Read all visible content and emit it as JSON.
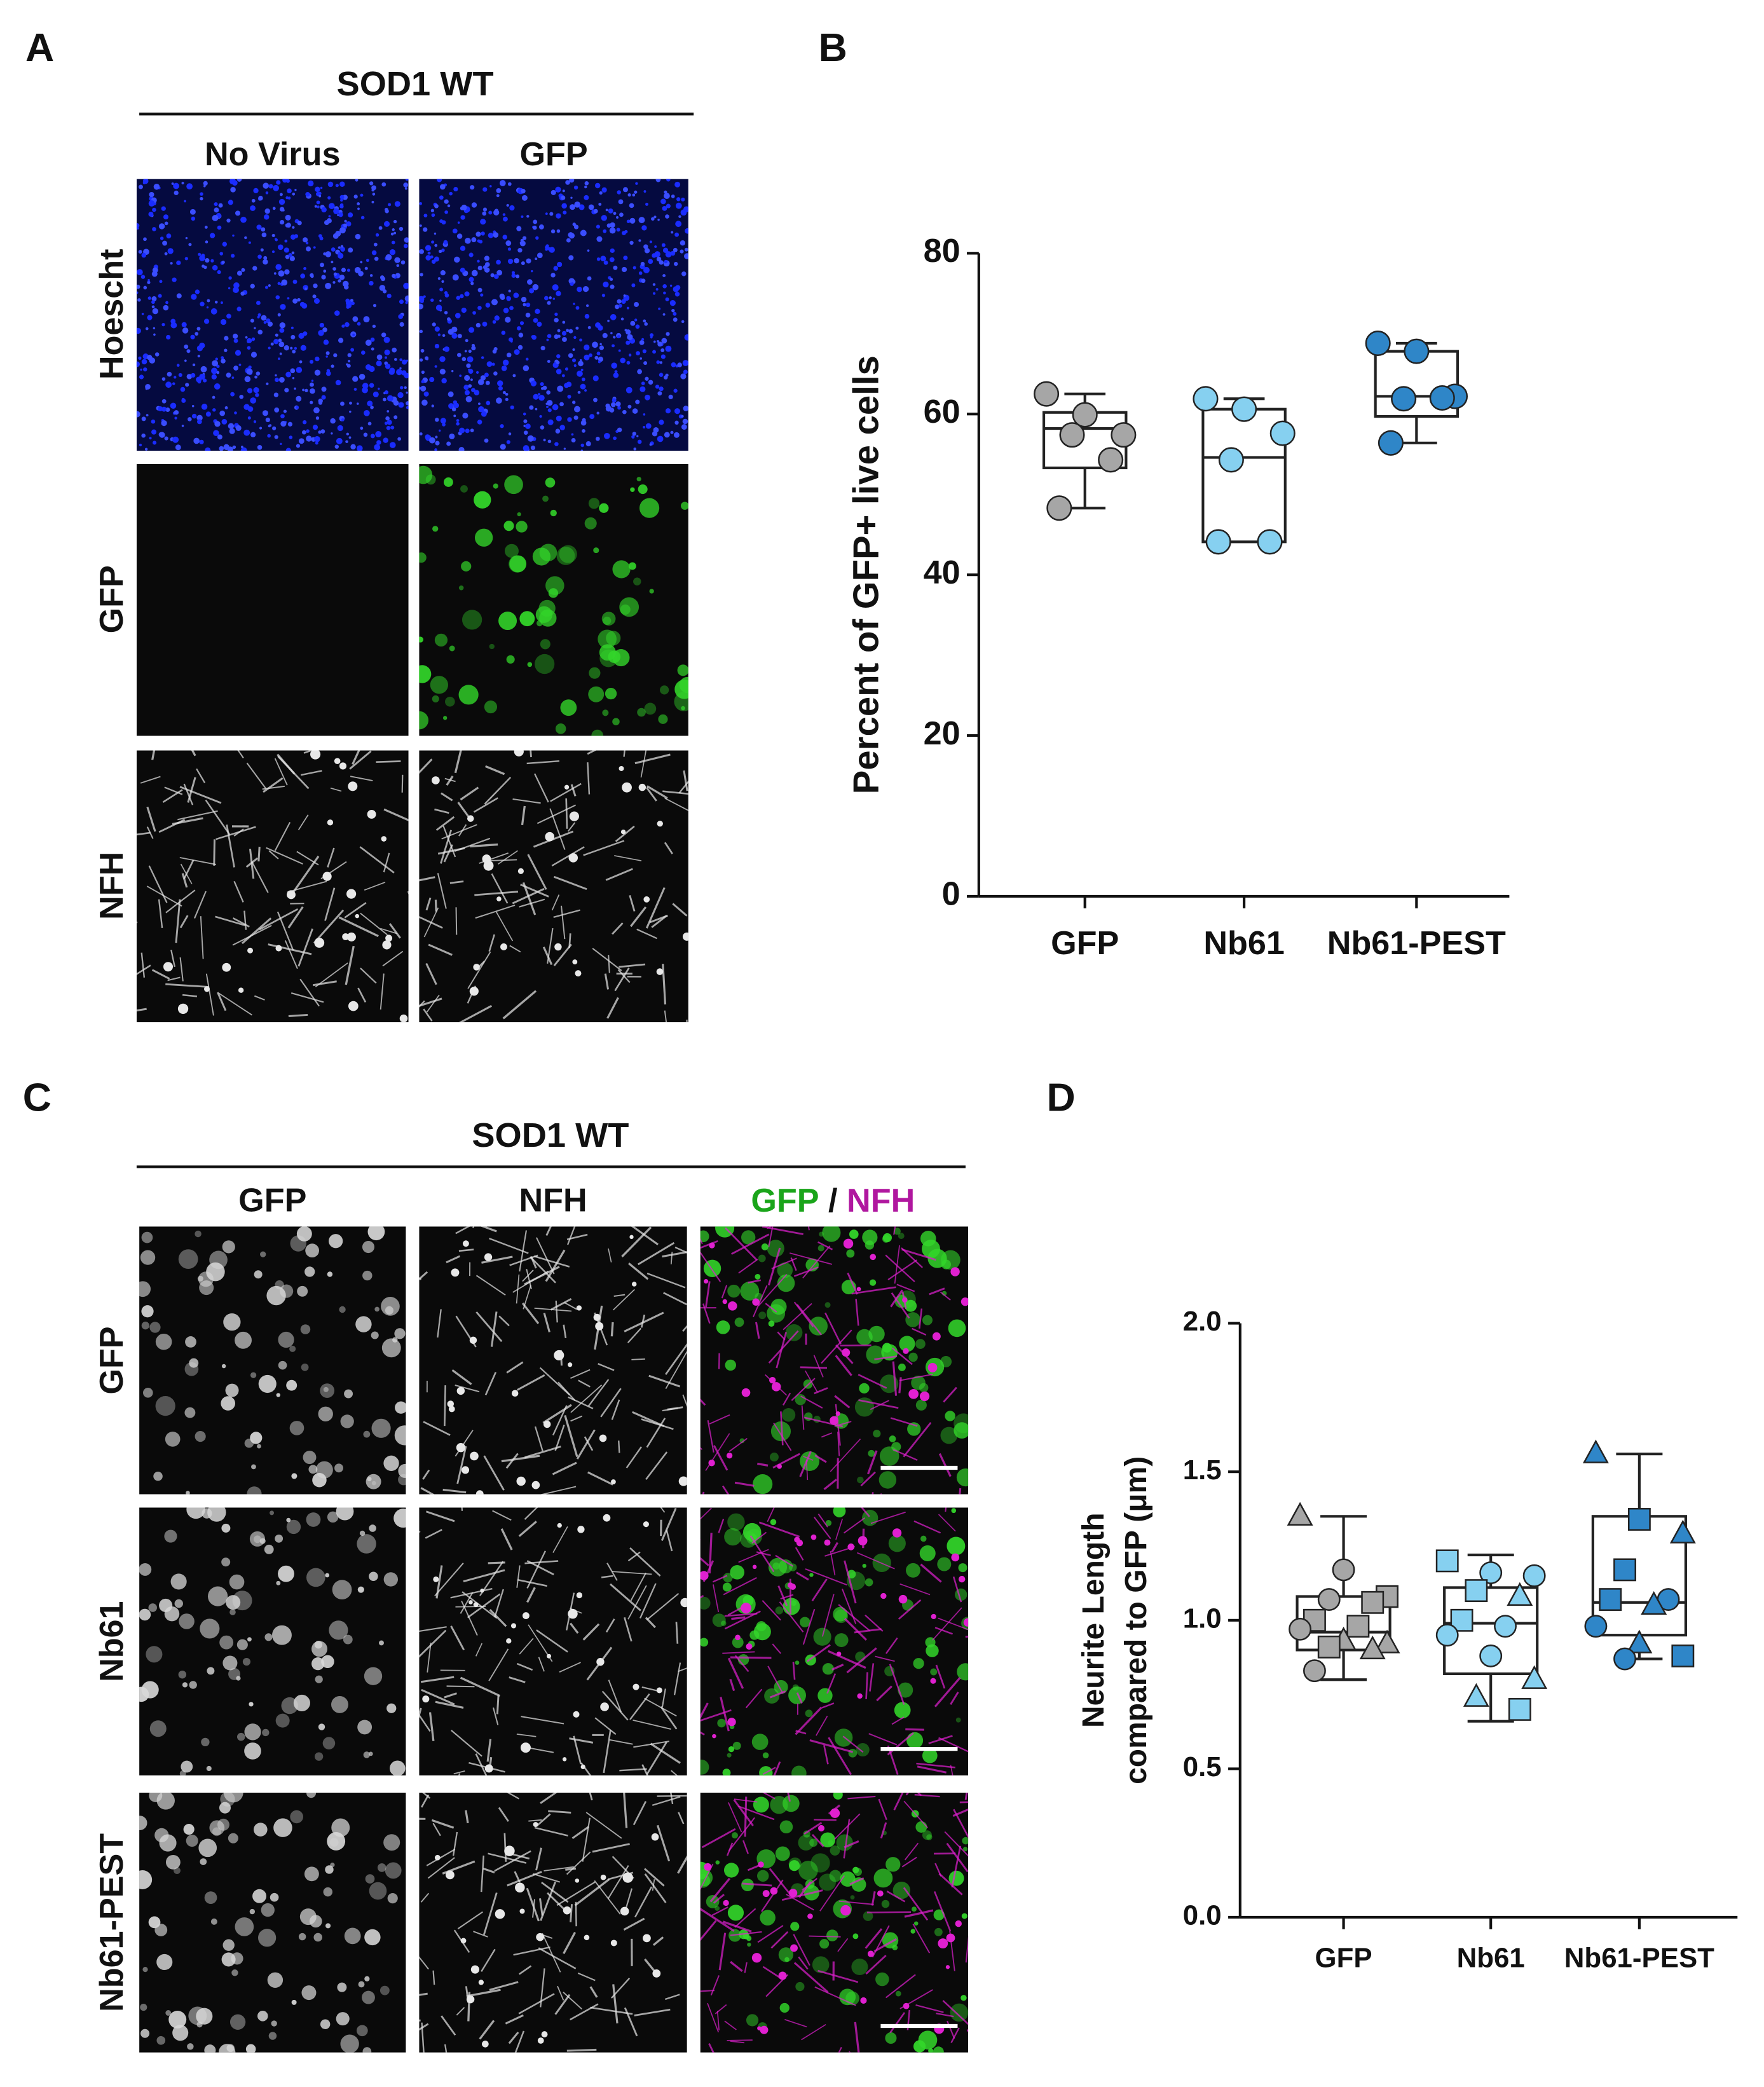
{
  "panel_a": {
    "letter": "A",
    "title": "SOD1 WT",
    "columns": [
      "No Virus",
      "GFP"
    ],
    "rows": [
      "Hoescht",
      "GFP",
      "NFH"
    ]
  },
  "panel_c": {
    "letter": "C",
    "title": "SOD1 WT",
    "columns": [
      "GFP",
      "NFH"
    ],
    "merge_label": [
      "GFP",
      "/",
      "NFH"
    ],
    "rows": [
      "GFP",
      "Nb61",
      "Nb61-PEST"
    ]
  },
  "chart_data": [
    {
      "type": "box",
      "panel": "B",
      "y_label": "Percent of GFP+ live cells",
      "categories": [
        "GFP",
        "Nb61",
        "Nb61-PEST"
      ],
      "ylim": [
        0,
        80
      ],
      "yticks": [
        0,
        20,
        40,
        60,
        80
      ],
      "boxes": [
        {
          "color": "#a6a6a6",
          "min": 48.3,
          "q1": 53.3,
          "median": 58.2,
          "q3": 60.2,
          "max": 62.5,
          "points": [
            62.5,
            59.9,
            57.4,
            57.4,
            54.3,
            48.3
          ]
        },
        {
          "color": "#86d0f0",
          "min": 44.1,
          "q1": 44.1,
          "median": 54.6,
          "q3": 60.6,
          "max": 61.9,
          "points": [
            61.9,
            60.6,
            57.6,
            54.3,
            44.1,
            44.1
          ]
        },
        {
          "color": "#2f86c8",
          "min": 56.4,
          "q1": 59.7,
          "median": 62.2,
          "q3": 67.8,
          "max": 68.8,
          "points": [
            68.8,
            67.8,
            62.2,
            61.9,
            62.0,
            56.4
          ]
        }
      ]
    },
    {
      "type": "box",
      "panel": "D",
      "y_label": [
        "Neurite Length",
        "compared to GFP (μm)"
      ],
      "categories": [
        "GFP",
        "Nb61",
        "Nb61-PEST"
      ],
      "ylim": [
        0,
        2
      ],
      "yticks": [
        {
          "value": 0,
          "label": "0.0"
        },
        {
          "value": 0.5,
          "label": "0.5"
        },
        {
          "value": 1,
          "label": "1.0"
        },
        {
          "value": 1.5,
          "label": "1.5"
        },
        {
          "value": 2,
          "label": "2.0"
        }
      ],
      "boxes": [
        {
          "color": "#a6a6a6",
          "min": 0.8,
          "q1": 0.9,
          "median": 0.96,
          "q3": 1.08,
          "max": 1.35,
          "points": [
            1.35,
            1.17,
            1.08,
            1.07,
            1.06,
            1.0,
            0.98,
            0.97,
            0.93,
            0.92,
            0.91,
            0.9,
            0.83
          ],
          "markers": [
            "triangle",
            "circle",
            "square",
            "circle",
            "square",
            "square",
            "square",
            "circle",
            "triangle",
            "triangle",
            "square",
            "triangle",
            "circle"
          ]
        },
        {
          "color": "#86d0f0",
          "min": 0.66,
          "q1": 0.82,
          "median": 0.99,
          "q3": 1.11,
          "max": 1.22,
          "points": [
            1.2,
            1.16,
            1.15,
            1.1,
            1.08,
            1.0,
            0.98,
            0.95,
            0.88,
            0.8,
            0.74,
            0.7
          ],
          "markers": [
            "square",
            "circle",
            "circle",
            "square",
            "triangle",
            "square",
            "circle",
            "circle",
            "circle",
            "triangle",
            "triangle",
            "square"
          ]
        },
        {
          "color": "#2f86c8",
          "min": 0.87,
          "q1": 0.95,
          "median": 1.06,
          "q3": 1.35,
          "max": 1.56,
          "points": [
            1.56,
            1.34,
            1.29,
            1.17,
            1.07,
            1.07,
            1.05,
            0.98,
            0.92,
            0.88,
            0.87
          ],
          "markers": [
            "triangle",
            "square",
            "triangle",
            "square",
            "circle",
            "square",
            "triangle",
            "circle",
            "triangle",
            "square",
            "circle"
          ]
        }
      ]
    }
  ]
}
